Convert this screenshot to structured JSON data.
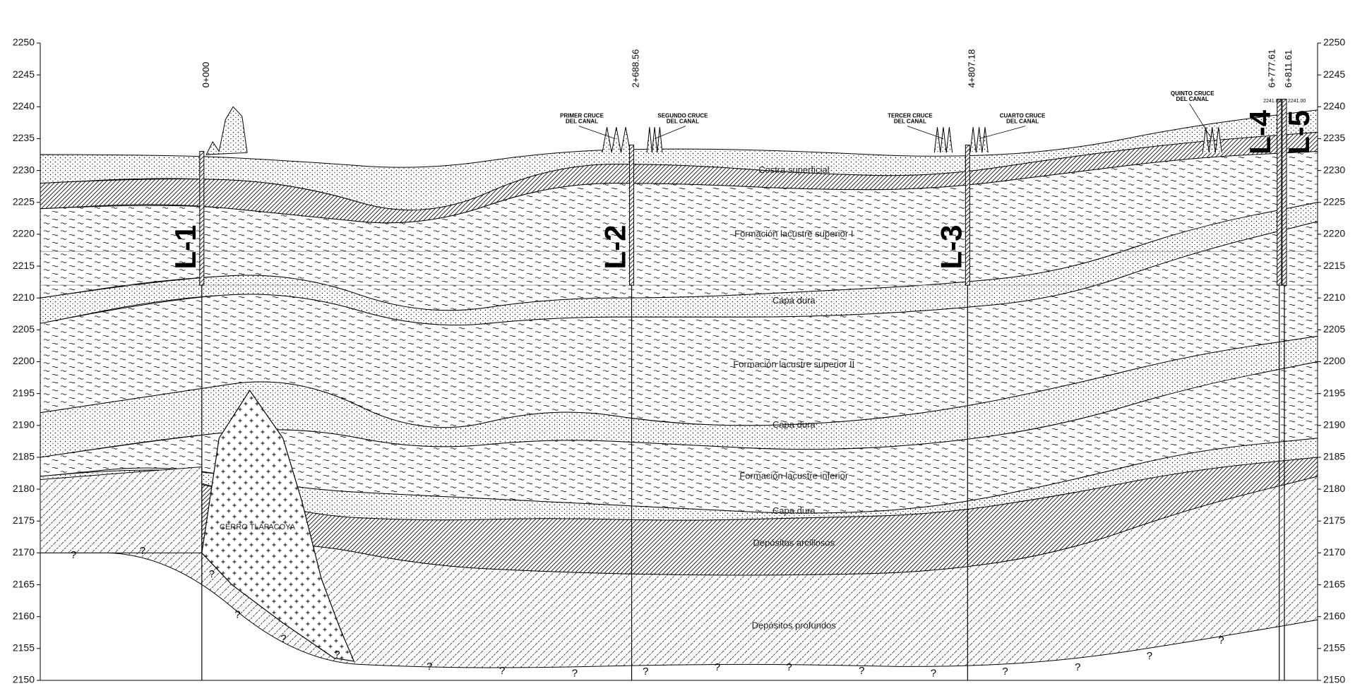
{
  "axis": {
    "ticks": [
      2150,
      2155,
      2160,
      2165,
      2170,
      2175,
      2180,
      2185,
      2190,
      2195,
      2200,
      2205,
      2210,
      2215,
      2220,
      2225,
      2230,
      2235,
      2240,
      2245,
      2250
    ]
  },
  "boreholes": [
    {
      "label": "L-1",
      "chainage": "0+000"
    },
    {
      "label": "L-2",
      "chainage": "2+688.56"
    },
    {
      "label": "L-3",
      "chainage": "4+807.18"
    },
    {
      "label": "L-4",
      "chainage": "6+777.61"
    },
    {
      "label": "L-5",
      "chainage": "6+811.61"
    }
  ],
  "elevation_tags": [
    "2241.00",
    "2241.00"
  ],
  "canal_crossings": [
    [
      "PRIMER CRUCE",
      "DEL CANAL"
    ],
    [
      "SEGUNDO CRUCE",
      "DEL CANAL"
    ],
    [
      "TERCER CRUCE",
      "DEL CANAL"
    ],
    [
      "CUARTO CRUCE",
      "DEL CANAL"
    ],
    [
      "QUINTO CRUCE",
      "DEL CANAL"
    ]
  ],
  "strata": [
    "Costra superficial",
    "Formación lacustre superior I",
    "Capa dura",
    "Formación lacustre superior II",
    "Capa dura",
    "Formación lacustre inferior",
    "Capa dura",
    "Depósitos arcillosos",
    "Depósitos profundos"
  ],
  "outcrop": "CERRO TLAPACOYA",
  "uncertain_marker": "?"
}
